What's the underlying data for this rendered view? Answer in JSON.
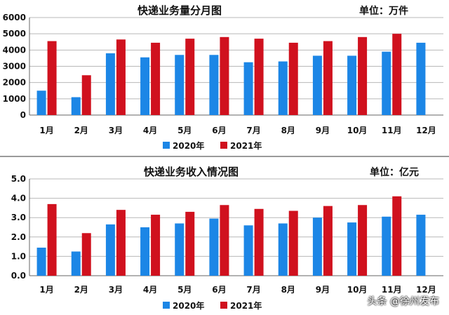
{
  "chart_data": [
    {
      "type": "bar",
      "title": "快递业务量分月图",
      "unit_label": "单位：万件",
      "categories": [
        "1月",
        "2月",
        "3月",
        "4月",
        "5月",
        "6月",
        "7月",
        "8月",
        "9月",
        "10月",
        "11月",
        "12月"
      ],
      "series": [
        {
          "name": "2020年",
          "values": [
            1500,
            1100,
            3800,
            3550,
            3700,
            3700,
            3250,
            3300,
            3650,
            3650,
            3900,
            4450
          ]
        },
        {
          "name": "2021年",
          "values": [
            4550,
            2450,
            4650,
            4450,
            4700,
            4800,
            4700,
            4450,
            4550,
            4800,
            5000,
            null
          ]
        }
      ],
      "ylim": [
        0,
        6000
      ],
      "yticks": [
        "0",
        "1000",
        "2000",
        "3000",
        "4000",
        "5000",
        "6000"
      ],
      "grid": true,
      "legend": "bottom"
    },
    {
      "type": "bar",
      "title": "快递业务收入情况图",
      "unit_label": "单位：亿元",
      "categories": [
        "1月",
        "2月",
        "3月",
        "4月",
        "5月",
        "6月",
        "7月",
        "8月",
        "9月",
        "10月",
        "11月",
        "12月"
      ],
      "series": [
        {
          "name": "2020年",
          "values": [
            1.45,
            1.25,
            2.65,
            2.5,
            2.7,
            2.95,
            2.6,
            2.7,
            3.0,
            2.75,
            3.05,
            3.15
          ]
        },
        {
          "name": "2021年",
          "values": [
            3.7,
            2.2,
            3.4,
            3.15,
            3.3,
            3.65,
            3.45,
            3.35,
            3.6,
            3.65,
            4.1,
            null
          ]
        }
      ],
      "ylim": [
        0,
        5.0
      ],
      "yticks": [
        "0.0",
        "1.0",
        "2.0",
        "3.0",
        "4.0",
        "5.0"
      ],
      "grid": true,
      "legend": "bottom"
    }
  ],
  "colors": {
    "series_2020": "#1c86e6",
    "series_2021": "#d0111e",
    "grid": "#b8b8b8",
    "axis": "#666666"
  },
  "watermark": "头条 @徐州发布"
}
